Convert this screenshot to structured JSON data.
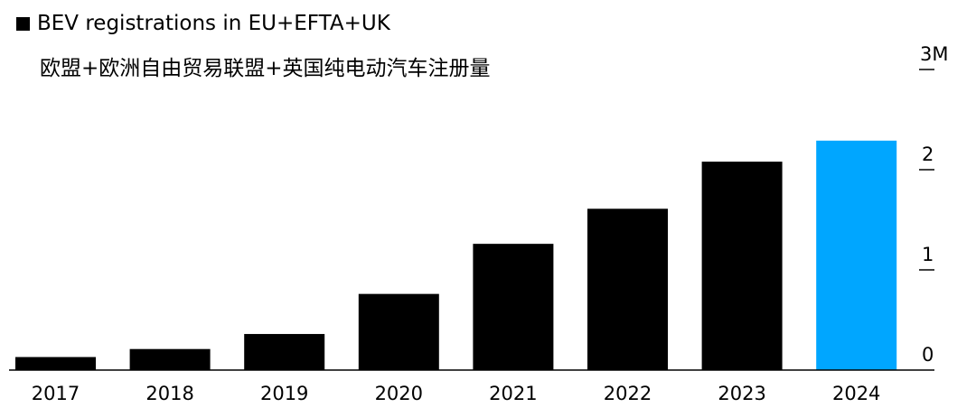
{
  "chart_data": {
    "type": "bar",
    "title": "BEV registrations in EU+EFTA+UK",
    "subtitle": "欧盟+欧洲自由贸易联盟+英国纯电动汽车注册量",
    "categories": [
      "2017",
      "2018",
      "2019",
      "2020",
      "2021",
      "2022",
      "2023",
      "2024"
    ],
    "series": [
      {
        "name": "BEV registrations in EU+EFTA+UK",
        "values": [
          0.13,
          0.21,
          0.36,
          0.76,
          1.26,
          1.61,
          2.08,
          2.29
        ]
      }
    ],
    "highlight_index": 7,
    "ylim": [
      0,
      3
    ],
    "yticks": [
      0,
      1,
      2,
      3
    ],
    "ytick_labels": [
      "0",
      "1",
      "2",
      "3M"
    ],
    "yaxis_position": "right",
    "grid": false,
    "legend_position": "top-left",
    "colors": {
      "bar": "#000000",
      "highlight": "#00A6FF",
      "axis": "#000000",
      "text": "#000000"
    }
  }
}
